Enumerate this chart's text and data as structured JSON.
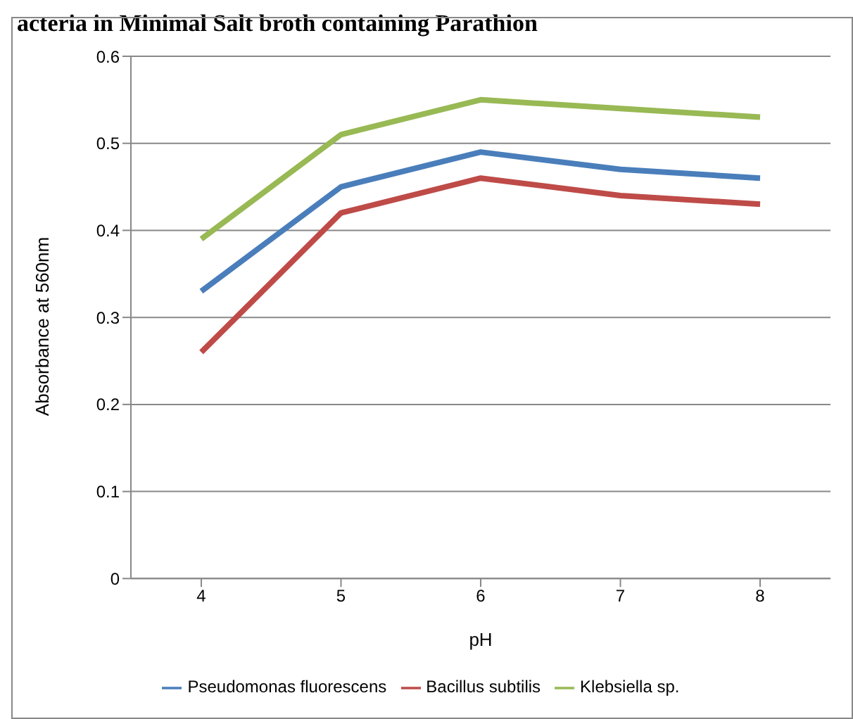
{
  "chart_data": {
    "type": "line",
    "title": "acteria in Minimal Salt broth containing Parathion",
    "xlabel": "pH",
    "ylabel": "Absorbance at 560nm",
    "categories": [
      "4",
      "5",
      "6",
      "7",
      "8"
    ],
    "series": [
      {
        "name": "Pseudomonas fluorescens",
        "color": "#4a7ebb",
        "values": [
          0.33,
          0.45,
          0.49,
          0.47,
          0.46
        ]
      },
      {
        "name": "Bacillus subtilis",
        "color": "#be4b48",
        "values": [
          0.26,
          0.42,
          0.46,
          0.44,
          0.43
        ]
      },
      {
        "name": "Klebsiella sp.",
        "color": "#98b954",
        "values": [
          0.39,
          0.51,
          0.55,
          0.54,
          0.53
        ]
      }
    ],
    "ylim": [
      0,
      0.6
    ],
    "yticks": [
      0,
      0.1,
      0.2,
      0.3,
      0.4,
      0.5,
      0.6
    ],
    "grid": "y",
    "legend": "bottom",
    "marker": "none",
    "line_style": "solid"
  }
}
